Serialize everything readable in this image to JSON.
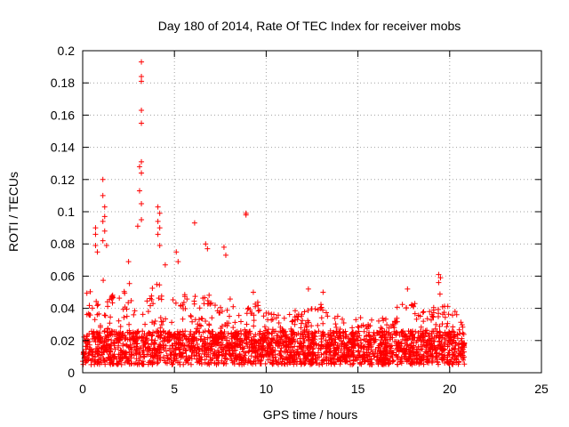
{
  "chart_data": {
    "type": "scatter",
    "title": "Day 180 of 2014, Rate Of TEC Index for receiver mobs",
    "xlabel": "GPS time / hours",
    "ylabel": "ROTI / TECUs",
    "xlim": [
      0,
      25
    ],
    "ylim": [
      0,
      0.2
    ],
    "xticks": [
      0,
      5,
      10,
      15,
      20,
      25
    ],
    "yticks": [
      0,
      0.02,
      0.04,
      0.06,
      0.08,
      0.1,
      0.12,
      0.14,
      0.16,
      0.18,
      0.2
    ],
    "grid": true,
    "marker": "+",
    "series_color": "#ff0000",
    "data_time_range_hours": [
      0,
      20.8
    ],
    "dense_band": {
      "y_floor": 0.005,
      "y_typical_top": 0.035
    },
    "notable_points": [
      {
        "x": 3.2,
        "y": 0.193
      },
      {
        "x": 3.2,
        "y": 0.184
      },
      {
        "x": 3.2,
        "y": 0.181
      },
      {
        "x": 3.2,
        "y": 0.163
      },
      {
        "x": 3.2,
        "y": 0.155
      },
      {
        "x": 3.2,
        "y": 0.131
      },
      {
        "x": 3.1,
        "y": 0.128
      },
      {
        "x": 3.2,
        "y": 0.124
      },
      {
        "x": 3.1,
        "y": 0.113
      },
      {
        "x": 3.2,
        "y": 0.105
      },
      {
        "x": 3.2,
        "y": 0.095
      },
      {
        "x": 3.0,
        "y": 0.091
      },
      {
        "x": 1.1,
        "y": 0.12
      },
      {
        "x": 1.1,
        "y": 0.11
      },
      {
        "x": 1.2,
        "y": 0.103
      },
      {
        "x": 1.2,
        "y": 0.097
      },
      {
        "x": 1.1,
        "y": 0.094
      },
      {
        "x": 1.2,
        "y": 0.088
      },
      {
        "x": 1.1,
        "y": 0.082
      },
      {
        "x": 1.3,
        "y": 0.079
      },
      {
        "x": 0.7,
        "y": 0.09
      },
      {
        "x": 0.7,
        "y": 0.086
      },
      {
        "x": 0.7,
        "y": 0.079
      },
      {
        "x": 0.8,
        "y": 0.075
      },
      {
        "x": 4.1,
        "y": 0.103
      },
      {
        "x": 4.2,
        "y": 0.099
      },
      {
        "x": 4.1,
        "y": 0.094
      },
      {
        "x": 4.2,
        "y": 0.09
      },
      {
        "x": 4.1,
        "y": 0.086
      },
      {
        "x": 4.2,
        "y": 0.079
      },
      {
        "x": 6.1,
        "y": 0.093
      },
      {
        "x": 8.9,
        "y": 0.099
      },
      {
        "x": 8.9,
        "y": 0.098
      },
      {
        "x": 6.7,
        "y": 0.08
      },
      {
        "x": 6.8,
        "y": 0.077
      },
      {
        "x": 7.7,
        "y": 0.078
      },
      {
        "x": 7.8,
        "y": 0.073
      },
      {
        "x": 5.1,
        "y": 0.075
      },
      {
        "x": 5.2,
        "y": 0.069
      },
      {
        "x": 19.4,
        "y": 0.061
      },
      {
        "x": 19.5,
        "y": 0.059
      },
      {
        "x": 19.4,
        "y": 0.056
      },
      {
        "x": 12.3,
        "y": 0.052
      },
      {
        "x": 13.1,
        "y": 0.05
      },
      {
        "x": 17.7,
        "y": 0.052
      },
      {
        "x": 9.3,
        "y": 0.05
      },
      {
        "x": 4.5,
        "y": 0.067
      },
      {
        "x": 2.5,
        "y": 0.069
      }
    ]
  }
}
